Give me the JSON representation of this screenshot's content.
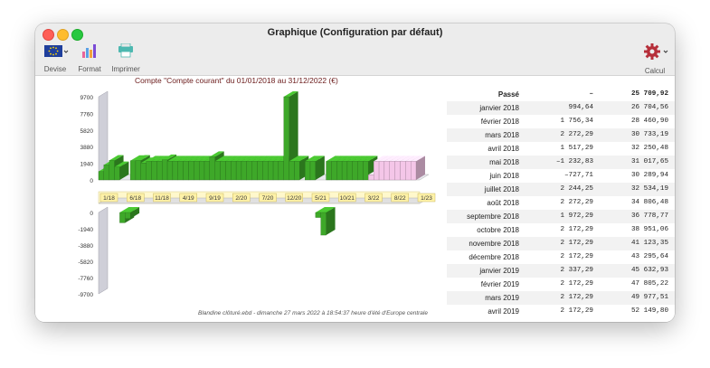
{
  "window": {
    "title": "Graphique (Configuration par défaut)"
  },
  "toolbar": {
    "devise": "Devise",
    "format": "Format",
    "imprimer": "Imprimer",
    "calcul": "Calcul"
  },
  "chart_title": "Compte \"Compte courant\" du 01/01/2018 au 31/12/2022 (€)",
  "footer": "Blandine clôturé.ebd - dimanche 27 mars 2022 à 18:54:37 heure d'été d'Europe centrale",
  "chart_data": {
    "type": "bar",
    "title": "Compte \"Compte courant\" du 01/01/2018 au 31/12/2022 (€)",
    "y_ticks_upper": [
      "9700",
      "7760",
      "5820",
      "3880",
      "1940",
      "0"
    ],
    "y_ticks_lower": [
      "0",
      "-1940",
      "-3880",
      "-5820",
      "-7760",
      "-9700"
    ],
    "x_ticks": [
      "1/18",
      "6/18",
      "11/18",
      "4/19",
      "9/19",
      "2/20",
      "7/20",
      "12/20",
      "5/21",
      "10/21",
      "3/22",
      "8/22",
      "1/23"
    ],
    "ylim": [
      -9700,
      9700
    ],
    "months": [
      "1/18",
      "2/18",
      "3/18",
      "4/18",
      "5/18",
      "6/18",
      "7/18",
      "8/18",
      "9/18",
      "10/18",
      "11/18",
      "12/18",
      "1/19",
      "2/19",
      "3/19",
      "4/19",
      "5/19",
      "6/19",
      "7/19",
      "8/19",
      "9/19",
      "10/19",
      "11/19",
      "12/19",
      "1/20",
      "2/20",
      "3/20",
      "4/20",
      "5/20",
      "6/20",
      "7/20",
      "8/20",
      "9/20",
      "10/20",
      "11/20",
      "12/20",
      "1/21",
      "2/21",
      "3/21",
      "4/21",
      "5/21",
      "6/21",
      "7/21",
      "8/21",
      "9/21",
      "10/21",
      "11/21",
      "12/21",
      "1/22",
      "2/22",
      "3/22",
      "4/22",
      "5/22",
      "6/22",
      "7/22",
      "8/22",
      "9/22",
      "10/22",
      "11/22",
      "12/22"
    ],
    "values": [
      994.64,
      1756.34,
      2272.29,
      1517.29,
      -1232.83,
      -727.71,
      2244.25,
      2272.29,
      1972.29,
      2172.29,
      2172.29,
      2172.29,
      2337.29,
      2172.29,
      2172.29,
      2172.29,
      2172.29,
      2172.29,
      2172.29,
      2172.29,
      2172.29,
      2700,
      2172.29,
      2172.29,
      2172.29,
      2172.29,
      2172.29,
      2172.29,
      2172.29,
      2172.29,
      2172.29,
      2172.29,
      2172.29,
      2172.29,
      2172.29,
      9700,
      2172.29,
      2172.29,
      0,
      2172.29,
      2172.29,
      -600,
      -2700,
      2172.29,
      2172.29,
      2172.29,
      2172.29,
      2172.29,
      2172.29,
      2172.29,
      2172.29,
      600,
      2172.29,
      2172.29,
      2172.29,
      2172.29,
      2172.29,
      2172.29,
      2172.29,
      2172.29
    ],
    "projected_from_index": 51,
    "colors": {
      "past": "#3ea829",
      "projected": "#f4c6e8"
    }
  },
  "table": {
    "header": [
      "Passé",
      "–",
      "25 709,92"
    ],
    "rows": [
      [
        "janvier 2018",
        "994,64",
        "26 704,56"
      ],
      [
        "février 2018",
        "1 756,34",
        "28 460,90"
      ],
      [
        "mars 2018",
        "2 272,29",
        "30 733,19"
      ],
      [
        "avril 2018",
        "1 517,29",
        "32 250,48"
      ],
      [
        "mai 2018",
        "–1 232,83",
        "31 017,65"
      ],
      [
        "juin 2018",
        "–727,71",
        "30 289,94"
      ],
      [
        "juillet 2018",
        "2 244,25",
        "32 534,19"
      ],
      [
        "août 2018",
        "2 272,29",
        "34 806,48"
      ],
      [
        "septembre 2018",
        "1 972,29",
        "36 778,77"
      ],
      [
        "octobre 2018",
        "2 172,29",
        "38 951,06"
      ],
      [
        "novembre 2018",
        "2 172,29",
        "41 123,35"
      ],
      [
        "décembre 2018",
        "2 172,29",
        "43 295,64"
      ],
      [
        "janvier 2019",
        "2 337,29",
        "45 632,93"
      ],
      [
        "février 2019",
        "2 172,29",
        "47 805,22"
      ],
      [
        "mars 2019",
        "2 172,29",
        "49 977,51"
      ],
      [
        "avril 2019",
        "2 172,29",
        "52 149,80"
      ]
    ]
  }
}
